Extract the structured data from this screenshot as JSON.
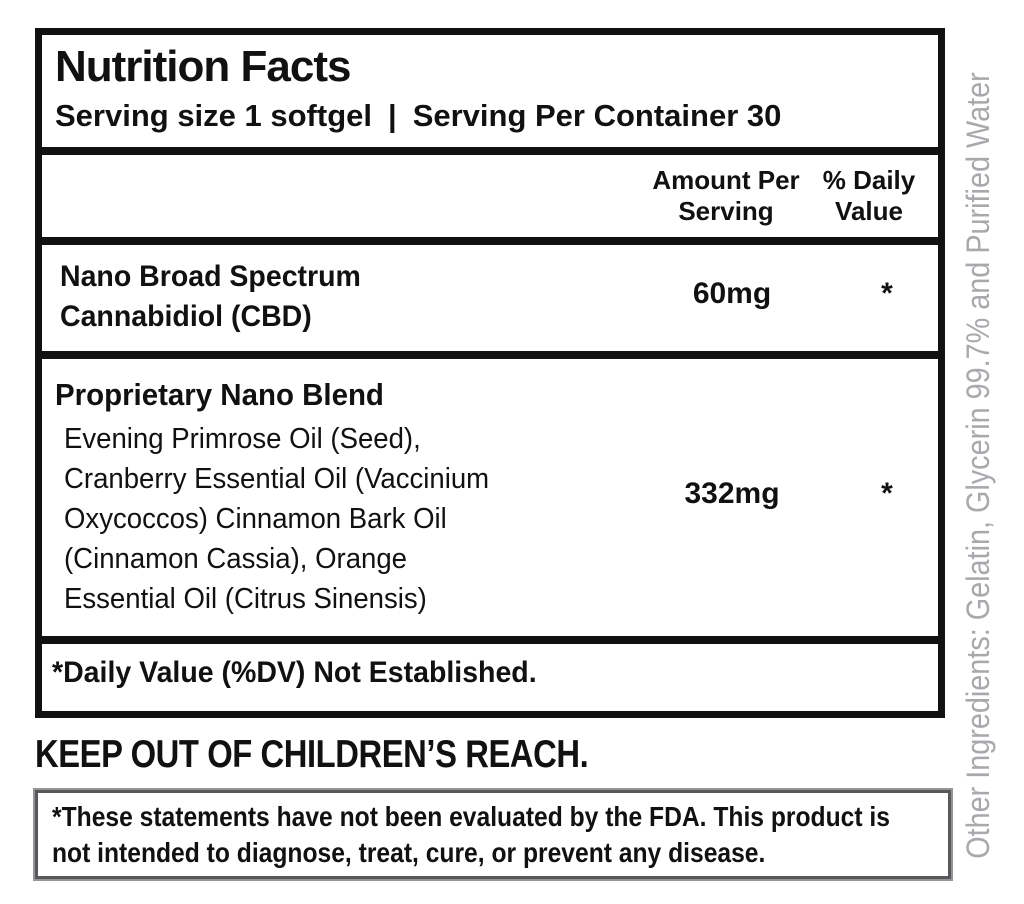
{
  "panel": {
    "title": "Nutrition Facts",
    "serving_size": "Serving size 1 softgel",
    "separator": "|",
    "servings_per_container": "Serving Per Container 30",
    "columns": {
      "amount": [
        "Amount Per",
        "Serving"
      ],
      "daily_value": [
        "% Daily",
        "Value"
      ]
    },
    "rows": [
      {
        "name_lines": [
          "Nano Broad Spectrum",
          "Cannabidiol (CBD)"
        ],
        "amount": "60mg",
        "daily_value": "*"
      },
      {
        "name": "Proprietary Nano Blend",
        "description_lines": [
          "Evening Primrose Oil (Seed),",
          "Cranberry Essential Oil (Vaccinium",
          "Oxycoccos) Cinnamon Bark Oil",
          "(Cinnamon Cassia), Orange",
          "Essential Oil (Citrus Sinensis)"
        ],
        "amount": "332mg",
        "daily_value": "*"
      }
    ],
    "footnote": "*Daily Value (%DV) Not Established."
  },
  "warning": "KEEP OUT OF CHILDREN’S REACH.",
  "disclaimer": {
    "lines": [
      "*These statements have not been evaluated by the FDA. This product is",
      "not intended to diagnose, treat, cure, or prevent any disease."
    ]
  },
  "side_text": "Other Ingredients: Gelatin, Glycerin 99.7% and Purified Water",
  "colors": {
    "ink": "#111111",
    "side_text_gray": "#a7a9ac",
    "disclaimer_border_outer": "#939598",
    "disclaimer_border_inner": "#58595b"
  }
}
